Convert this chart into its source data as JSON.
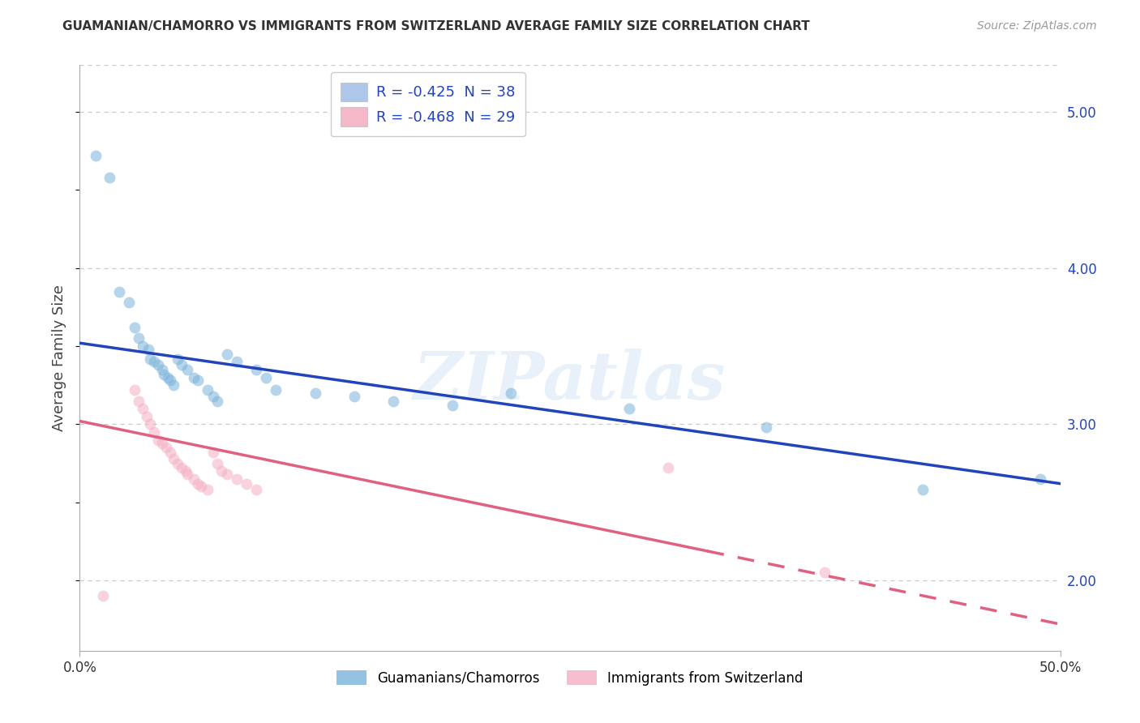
{
  "title": "GUAMANIAN/CHAMORRO VS IMMIGRANTS FROM SWITZERLAND AVERAGE FAMILY SIZE CORRELATION CHART",
  "source_text": "Source: ZipAtlas.com",
  "ylabel": "Average Family Size",
  "yticks_right": [
    2.0,
    3.0,
    4.0,
    5.0
  ],
  "xlim": [
    0.0,
    0.5
  ],
  "ylim": [
    1.55,
    5.3
  ],
  "blue_scatter": [
    [
      0.008,
      4.72
    ],
    [
      0.015,
      4.58
    ],
    [
      0.02,
      3.85
    ],
    [
      0.025,
      3.78
    ],
    [
      0.028,
      3.62
    ],
    [
      0.03,
      3.55
    ],
    [
      0.032,
      3.5
    ],
    [
      0.035,
      3.48
    ],
    [
      0.036,
      3.42
    ],
    [
      0.038,
      3.4
    ],
    [
      0.04,
      3.38
    ],
    [
      0.042,
      3.35
    ],
    [
      0.043,
      3.32
    ],
    [
      0.045,
      3.3
    ],
    [
      0.046,
      3.28
    ],
    [
      0.048,
      3.25
    ],
    [
      0.05,
      3.42
    ],
    [
      0.052,
      3.38
    ],
    [
      0.055,
      3.35
    ],
    [
      0.058,
      3.3
    ],
    [
      0.06,
      3.28
    ],
    [
      0.065,
      3.22
    ],
    [
      0.068,
      3.18
    ],
    [
      0.07,
      3.15
    ],
    [
      0.075,
      3.45
    ],
    [
      0.08,
      3.4
    ],
    [
      0.09,
      3.35
    ],
    [
      0.095,
      3.3
    ],
    [
      0.1,
      3.22
    ],
    [
      0.12,
      3.2
    ],
    [
      0.14,
      3.18
    ],
    [
      0.16,
      3.15
    ],
    [
      0.19,
      3.12
    ],
    [
      0.22,
      3.2
    ],
    [
      0.28,
      3.1
    ],
    [
      0.35,
      2.98
    ],
    [
      0.43,
      2.58
    ],
    [
      0.49,
      2.65
    ]
  ],
  "pink_scatter": [
    [
      0.012,
      1.9
    ],
    [
      0.028,
      3.22
    ],
    [
      0.03,
      3.15
    ],
    [
      0.032,
      3.1
    ],
    [
      0.034,
      3.05
    ],
    [
      0.036,
      3.0
    ],
    [
      0.038,
      2.95
    ],
    [
      0.04,
      2.9
    ],
    [
      0.042,
      2.88
    ],
    [
      0.044,
      2.85
    ],
    [
      0.046,
      2.82
    ],
    [
      0.048,
      2.78
    ],
    [
      0.05,
      2.75
    ],
    [
      0.052,
      2.72
    ],
    [
      0.054,
      2.7
    ],
    [
      0.055,
      2.68
    ],
    [
      0.058,
      2.65
    ],
    [
      0.06,
      2.62
    ],
    [
      0.062,
      2.6
    ],
    [
      0.065,
      2.58
    ],
    [
      0.068,
      2.82
    ],
    [
      0.07,
      2.75
    ],
    [
      0.072,
      2.7
    ],
    [
      0.075,
      2.68
    ],
    [
      0.08,
      2.65
    ],
    [
      0.085,
      2.62
    ],
    [
      0.09,
      2.58
    ],
    [
      0.3,
      2.72
    ],
    [
      0.38,
      2.05
    ]
  ],
  "blue_line_x": [
    0.0,
    0.5
  ],
  "blue_line_y": [
    3.52,
    2.62
  ],
  "pink_line_x": [
    0.0,
    0.5
  ],
  "pink_line_y": [
    3.02,
    1.72
  ],
  "pink_line_solid_end": 0.32,
  "blue_color": "#7ab3d9",
  "pink_color": "#f4b0c4",
  "blue_line_color": "#2244bb",
  "pink_line_color": "#e06080",
  "watermark_text": "ZIPatlas",
  "grid_color": "#c8c8c8",
  "legend_box_labels": [
    "R = -0.425  N = 38",
    "R = -0.468  N = 29"
  ],
  "legend_patch_colors": [
    "#aec6e8",
    "#f4b8c8"
  ],
  "bottom_legend_labels": [
    "Guamanians/Chamorros",
    "Immigrants from Switzerland"
  ],
  "scatter_size": 100,
  "scatter_alpha": 0.55,
  "background_color": "#ffffff"
}
